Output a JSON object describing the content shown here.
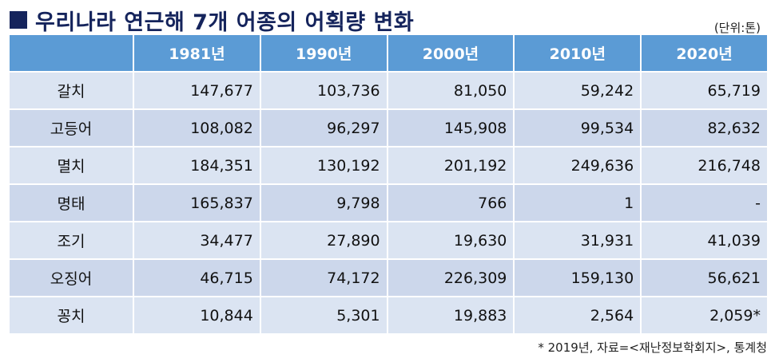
{
  "title": "우리나라 연근해 7개 어종의 어획량 변화",
  "unit": "(단위:톤)",
  "table": {
    "headers": [
      "",
      "1981년",
      "1990년",
      "2000년",
      "2010년",
      "2020년"
    ],
    "rows": [
      {
        "name": "갈치",
        "values": [
          "147,677",
          "103,736",
          "81,050",
          "59,242",
          "65,719"
        ]
      },
      {
        "name": "고등어",
        "values": [
          "108,082",
          "96,297",
          "145,908",
          "99,534",
          "82,632"
        ]
      },
      {
        "name": "멸치",
        "values": [
          "184,351",
          "130,192",
          "201,192",
          "249,636",
          "216,748"
        ]
      },
      {
        "name": "명태",
        "values": [
          "165,837",
          "9,798",
          "766",
          "1",
          "-"
        ]
      },
      {
        "name": "조기",
        "values": [
          "34,477",
          "27,890",
          "19,630",
          "31,931",
          "41,039"
        ]
      },
      {
        "name": "오징어",
        "values": [
          "46,715",
          "74,172",
          "226,309",
          "159,130",
          "56,621"
        ]
      },
      {
        "name": "꽁치",
        "values": [
          "10,844",
          "5,301",
          "19,883",
          "2,564",
          "2,059*"
        ]
      }
    ]
  },
  "footnote": "* 2019년, 자료=<재난정보학회지>, 통계청",
  "colors": {
    "title": "#15245c",
    "header_bg": "#5b9bd5",
    "row_bg": "#dbe4f2",
    "row_alt_bg": "#ccd7eb"
  }
}
